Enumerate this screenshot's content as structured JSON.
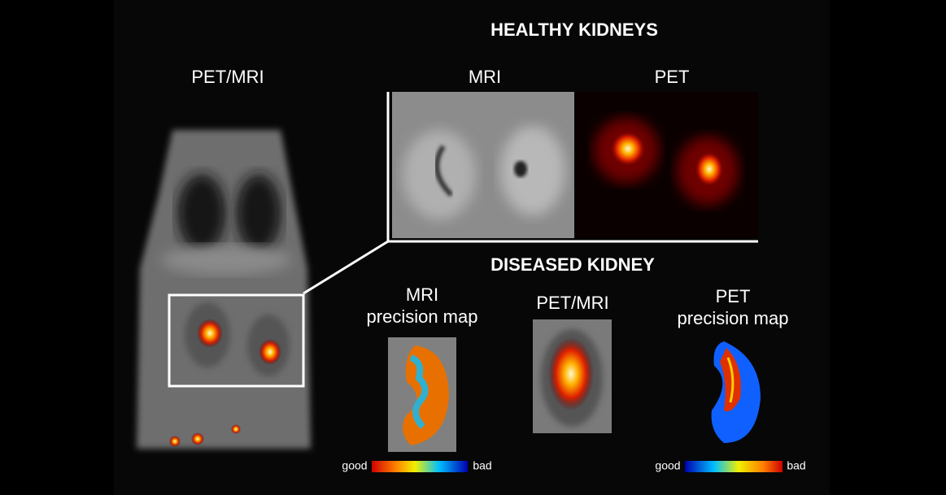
{
  "left_panel": {
    "label": "PET/MRI"
  },
  "healthy": {
    "title": "HEALTHY KIDNEYS",
    "panels": [
      {
        "label": "MRI"
      },
      {
        "label": "PET"
      }
    ]
  },
  "diseased": {
    "title": "DISEASED KIDNEY",
    "panels": [
      {
        "label": [
          "MRI",
          "precision map"
        ],
        "scale": {
          "low": "good",
          "high": "bad"
        }
      },
      {
        "label": [
          "PET/MRI"
        ]
      },
      {
        "label": [
          "PET",
          "precision map"
        ],
        "scale": {
          "low": "good",
          "high": "bad"
        }
      }
    ]
  }
}
